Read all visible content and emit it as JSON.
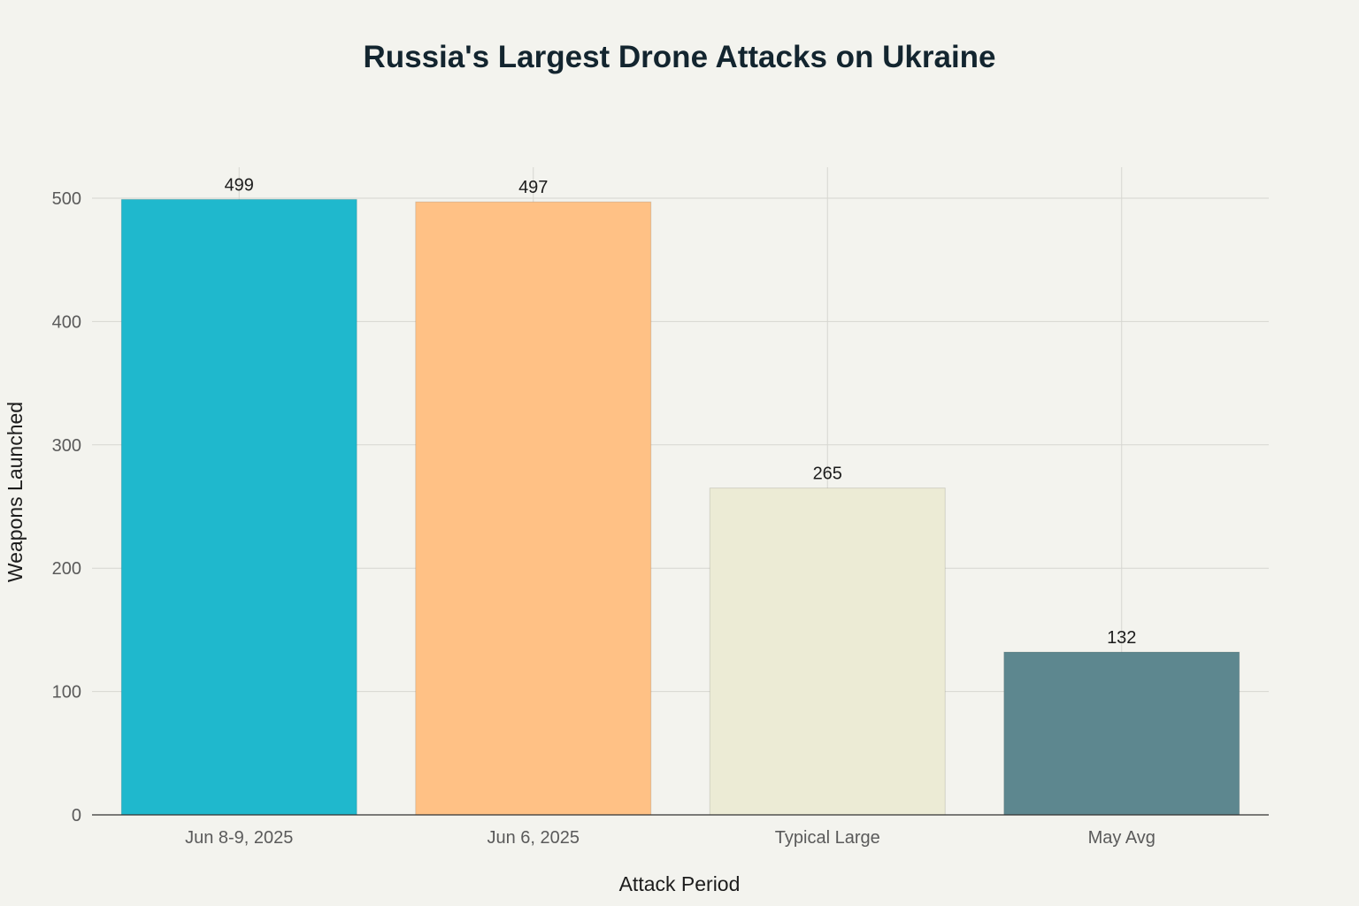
{
  "chart_data": {
    "type": "bar",
    "title": "Russia's Largest Drone Attacks on Ukraine",
    "xlabel": "Attack Period",
    "ylabel": "Weapons Launched",
    "categories": [
      "Jun 8-9, 2025",
      "Jun 6, 2025",
      "Typical Large",
      "May Avg"
    ],
    "values": [
      499,
      497,
      265,
      132
    ],
    "data_labels": [
      "499",
      "497",
      "265",
      "132"
    ],
    "colors": [
      "#1fb8cd",
      "#ffc185",
      "#eceBd5",
      "#5d878f"
    ],
    "ylim": [
      0,
      525
    ],
    "yticks": [
      0,
      100,
      200,
      300,
      400,
      500
    ],
    "ytick_labels": [
      "0",
      "100",
      "200",
      "300",
      "400",
      "500"
    ],
    "grid": true,
    "legend": "none"
  }
}
